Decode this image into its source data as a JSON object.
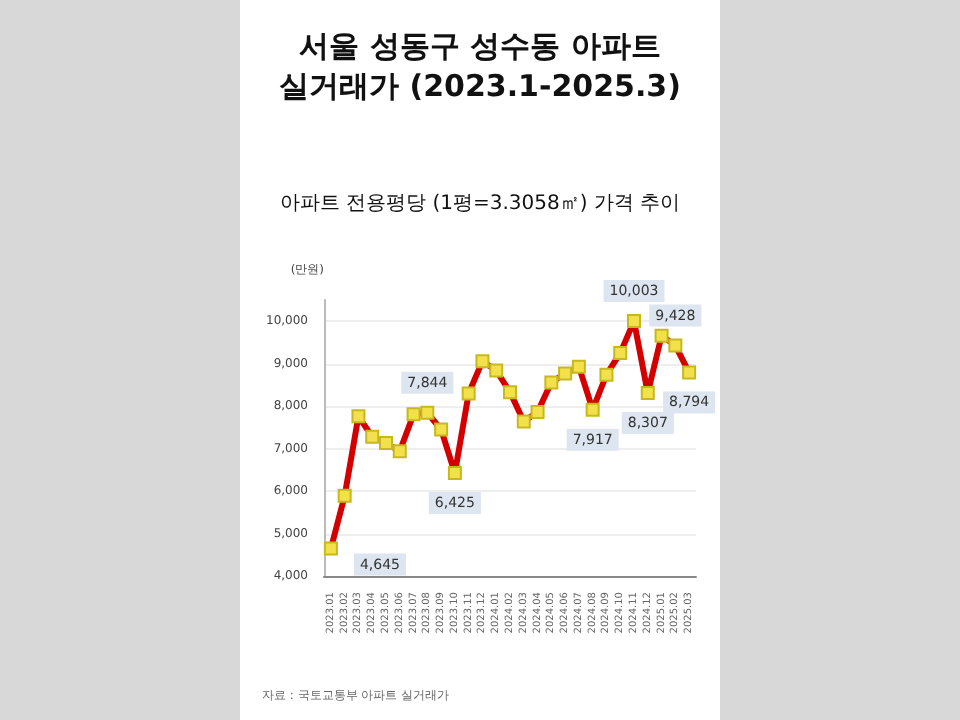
{
  "chart_data": {
    "type": "line",
    "title": "서울 성동구 성수동 아파트\n실거래가 (2023.1-2025.3)",
    "subtitle": "아파트 전용평당 (1평=3.3058㎡) 가격 추이",
    "ylabel": "(만원)",
    "categories": [
      "2023.01",
      "2023.02",
      "2023.03",
      "2023.04",
      "2023.05",
      "2023.06",
      "2023.07",
      "2023.08",
      "2023.09",
      "2023.10",
      "2023.11",
      "2023.12",
      "2024.01",
      "2024.02",
      "2024.03",
      "2024.04",
      "2024.05",
      "2024.06",
      "2024.07",
      "2024.08",
      "2024.09",
      "2024.10",
      "2024.11",
      "2024.12",
      "2025.01",
      "2025.02",
      "2025.03"
    ],
    "series": [
      {
        "color": "#d40000",
        "values": [
          4645,
          5890,
          7760,
          7280,
          7130,
          6940,
          7810,
          7844,
          7450,
          6425,
          8300,
          9060,
          8840,
          8330,
          7640,
          7860,
          8560,
          8770,
          8930,
          7917,
          8740,
          9250,
          10003,
          8307,
          9660,
          9428,
          8794
        ],
        "value_labels": [
          "4,645",
          null,
          null,
          null,
          null,
          null,
          null,
          "7,844",
          null,
          "6,425",
          null,
          null,
          null,
          null,
          null,
          null,
          null,
          null,
          null,
          "7,917",
          null,
          null,
          "10,003",
          "8,307",
          null,
          "9,428",
          "8,794"
        ]
      }
    ],
    "ylim": [
      4000,
      10500
    ],
    "yticks": [
      {
        "value": 4000,
        "label": "4,000"
      },
      {
        "value": 5000,
        "label": "5,000"
      },
      {
        "value": 6000,
        "label": "6,000"
      },
      {
        "value": 7000,
        "label": "7,000"
      },
      {
        "value": 8000,
        "label": "8,000"
      },
      {
        "value": 9000,
        "label": "9,000"
      },
      {
        "value": 10000,
        "label": "10,000"
      }
    ],
    "grid": "y",
    "marker": "square",
    "line_style": "solid",
    "annotations": [
      "자료 : 국토교통부 아파트 실거래가"
    ]
  }
}
